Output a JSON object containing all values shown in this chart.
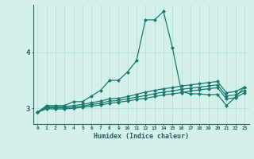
{
  "xlabel": "Humidex (Indice chaleur)",
  "x_values": [
    0,
    1,
    2,
    3,
    4,
    5,
    6,
    7,
    8,
    9,
    10,
    11,
    12,
    13,
    14,
    15,
    16,
    17,
    18,
    19,
    20,
    21,
    22,
    23
  ],
  "line1": [
    2.93,
    3.05,
    3.05,
    3.05,
    3.12,
    3.12,
    3.22,
    3.32,
    3.5,
    3.5,
    3.65,
    3.85,
    4.58,
    4.58,
    4.73,
    4.08,
    3.3,
    3.26,
    3.26,
    3.24,
    3.25,
    3.05,
    3.2,
    3.38
  ],
  "line2": [
    2.93,
    3.03,
    3.03,
    3.03,
    3.05,
    3.07,
    3.1,
    3.13,
    3.17,
    3.18,
    3.21,
    3.25,
    3.29,
    3.32,
    3.35,
    3.37,
    3.4,
    3.42,
    3.44,
    3.46,
    3.48,
    3.28,
    3.3,
    3.38
  ],
  "line3": [
    2.93,
    3.01,
    3.01,
    3.01,
    3.02,
    3.04,
    3.07,
    3.09,
    3.13,
    3.14,
    3.17,
    3.2,
    3.23,
    3.26,
    3.29,
    3.31,
    3.34,
    3.36,
    3.38,
    3.4,
    3.42,
    3.22,
    3.24,
    3.32
  ],
  "line4": [
    2.93,
    2.99,
    2.99,
    2.99,
    3.0,
    3.02,
    3.04,
    3.06,
    3.09,
    3.11,
    3.13,
    3.16,
    3.18,
    3.21,
    3.24,
    3.26,
    3.28,
    3.31,
    3.33,
    3.35,
    3.37,
    3.17,
    3.19,
    3.28
  ],
  "line_color": "#1a7a6e",
  "bg_color": "#d4f0eb",
  "grid_color": "#b8ddd8",
  "axis_color": "#2a5f5a",
  "ylim": [
    2.72,
    4.85
  ],
  "yticks": [
    3,
    4
  ],
  "marker": "D",
  "marker_size": 2.0,
  "linewidth": 0.9
}
